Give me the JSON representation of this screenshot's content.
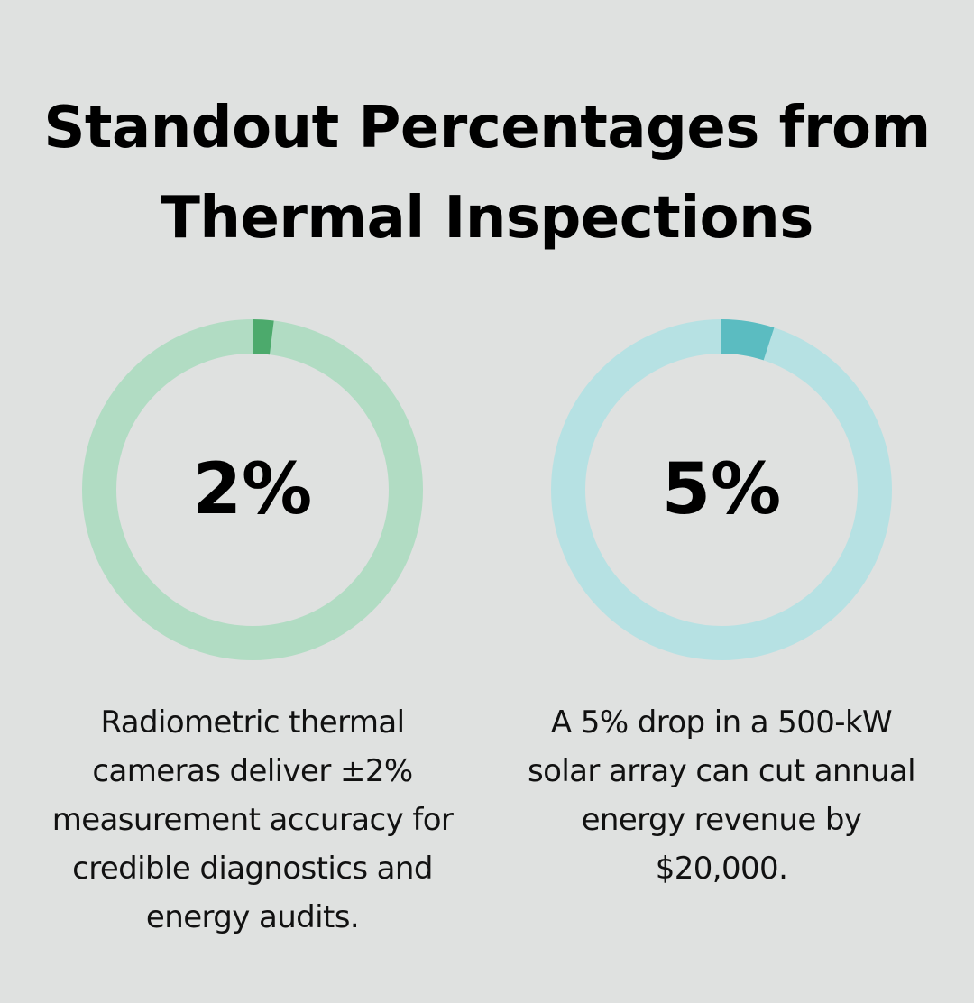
{
  "title": {
    "line1": "Standout Percentages from",
    "line2": "Thermal Inspections"
  },
  "chart_data": [
    {
      "type": "pie",
      "style": "donut",
      "value": 2,
      "max": 100,
      "label": "2%",
      "caption": "Radiometric thermal cameras deliver ±2% measurement accuracy for credible diagnostics and energy audits.",
      "colors": {
        "track": "#b1dcc3",
        "fill": "#4caa6c"
      }
    },
    {
      "type": "pie",
      "style": "donut",
      "value": 5,
      "max": 100,
      "label": "5%",
      "caption": "A 5% drop in a 500-kW solar array can cut annual energy revenue by $20,000.",
      "colors": {
        "track": "#b6e1e3",
        "fill": "#5bbcc1"
      }
    }
  ]
}
